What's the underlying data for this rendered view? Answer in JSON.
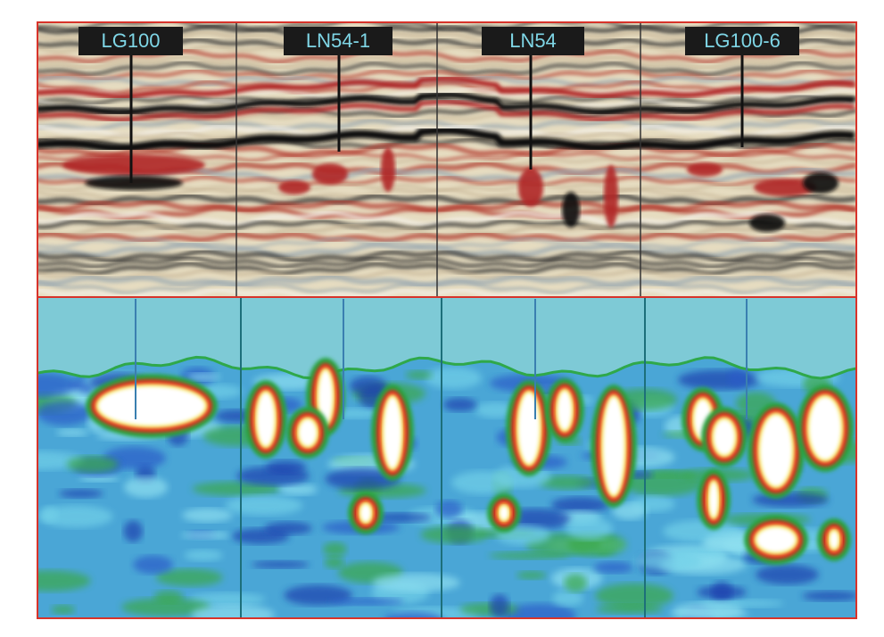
{
  "well_labels": [
    "LG100",
    "LN54-1",
    "LN54",
    "LG100-6"
  ]
}
